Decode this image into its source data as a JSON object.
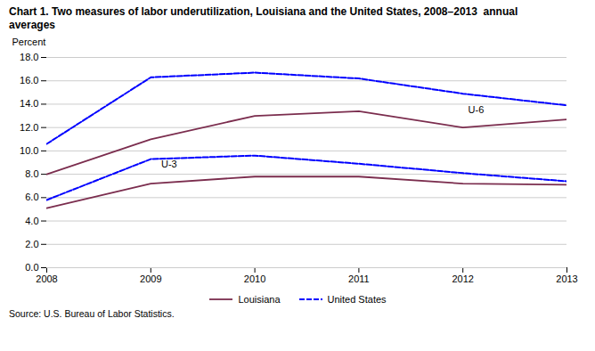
{
  "chart_data": {
    "type": "line",
    "title": "Chart 1. Two measures of labor underutilization, Louisiana and the United States, 2008–2013  annual\naverages",
    "ylabel": "Percent",
    "source": "Source: U.S. Bureau of Labor Statistics.",
    "x": [
      2008,
      2009,
      2010,
      2011,
      2012,
      2013
    ],
    "series": [
      {
        "name": "Louisiana",
        "color": "#7B2D4E",
        "line_style": "solid",
        "values": [
          5.1,
          7.2,
          7.8,
          7.8,
          7.2,
          7.1
        ]
      },
      {
        "name": "Louisiana",
        "color": "#7B2D4E",
        "line_style": "solid",
        "values": [
          8.0,
          11.0,
          13.0,
          13.4,
          12.0,
          12.7
        ]
      },
      {
        "name": "United States",
        "color": "#0000FF",
        "line_style": "dashed",
        "values": [
          5.8,
          9.3,
          9.6,
          8.9,
          8.1,
          7.4
        ]
      },
      {
        "name": "United States",
        "color": "#0000FF",
        "line_style": "dashed",
        "values": [
          10.6,
          16.3,
          16.7,
          16.2,
          14.9,
          13.9
        ]
      }
    ],
    "annotations": [
      {
        "text": "U-3",
        "x": 2009.1,
        "y": 8.6
      },
      {
        "text": "U-6",
        "x": 2012.05,
        "y": 13.2
      }
    ],
    "xlim": [
      2008,
      2013
    ],
    "xticks": [
      2008,
      2009,
      2010,
      2011,
      2012,
      2013
    ],
    "ylim": [
      0.0,
      18.0
    ],
    "yticks": [
      {
        "value": 0,
        "label": "0.0"
      },
      {
        "value": 2,
        "label": "2.0"
      },
      {
        "value": 4,
        "label": "4.0"
      },
      {
        "value": 6,
        "label": "6.0"
      },
      {
        "value": 8,
        "label": "8.0"
      },
      {
        "value": 10,
        "label": "10.0"
      },
      {
        "value": 12,
        "label": "12.0"
      },
      {
        "value": 14,
        "label": "14.0"
      },
      {
        "value": 16,
        "label": "16.0"
      },
      {
        "value": 18,
        "label": "18.0"
      }
    ],
    "grid": "y",
    "legend": "bottom"
  }
}
